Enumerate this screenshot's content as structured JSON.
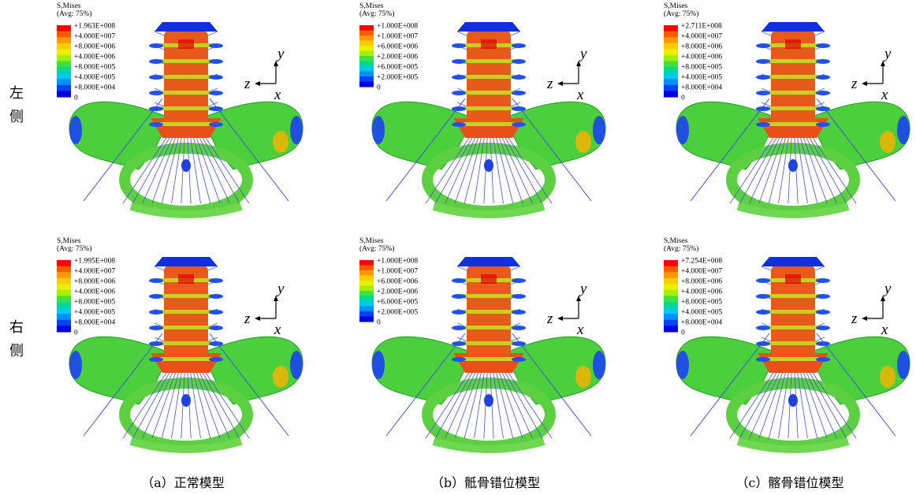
{
  "row_labels": [
    "左侧",
    "右侧"
  ],
  "captions": [
    "（a）正常模型",
    "（b）骶骨错位模型",
    "（c）髂骨错位模型"
  ],
  "panels": [
    {
      "legend_title": "S,Mises",
      "legend_avg": "(Avg: 75%)",
      "legend_labels": [
        "+1.963E+008",
        "+4.000E+007",
        "+8.000E+006",
        "+4.000E+006",
        "+8.000E+005",
        "+4.000E+005",
        "+8.000E+004",
        "0"
      ],
      "axis_y": "y",
      "axis_z": "z",
      "axis_x": "x"
    },
    {
      "legend_title": "S,Mises",
      "legend_avg": "(Avg: 75%)",
      "legend_labels": [
        "+1.000E+008",
        "+1.000E+007",
        "+6.000E+006",
        "+2.000E+006",
        "+6.000E+005",
        "+2.000E+005",
        "0"
      ],
      "axis_y": "y",
      "axis_z": "z",
      "axis_x": "x"
    },
    {
      "legend_title": "S,Mises",
      "legend_avg": "(Avg: 75%)",
      "legend_labels": [
        "+2.711E+008",
        "+4.000E+007",
        "+8.000E+006",
        "+4.000E+006",
        "+8.000E+005",
        "+4.000E+005",
        "+8.000E+004",
        "0"
      ],
      "axis_y": "y",
      "axis_z": "z",
      "axis_x": "x"
    },
    {
      "legend_title": "S,Mises",
      "legend_avg": "(Avg: 75%)",
      "legend_labels": [
        "+1.995E+008",
        "+4.000E+007",
        "+8.000E+006",
        "+4.000E+006",
        "+8.000E+005",
        "+4.000E+005",
        "+8.000E+004",
        "0"
      ],
      "axis_y": "y",
      "axis_z": "z",
      "axis_x": "x"
    },
    {
      "legend_title": "S,Mises",
      "legend_avg": "(Avg: 75%)",
      "legend_labels": [
        "+1.000E+008",
        "+1.000E+007",
        "+6.000E+006",
        "+2.000E+006",
        "+6.000E+005",
        "+2.000E+005",
        "0"
      ],
      "axis_y": "y",
      "axis_z": "z",
      "axis_x": "x"
    },
    {
      "legend_title": "S,Mises",
      "legend_avg": "(Avg: 75%)",
      "legend_labels": [
        "+7.254E+008",
        "+4.000E+007",
        "+8.000E+006",
        "+4.000E+006",
        "+8.000E+005",
        "+4.000E+005",
        "+8.000E+004",
        "0"
      ],
      "axis_y": "y",
      "axis_z": "z",
      "axis_x": "x"
    }
  ]
}
